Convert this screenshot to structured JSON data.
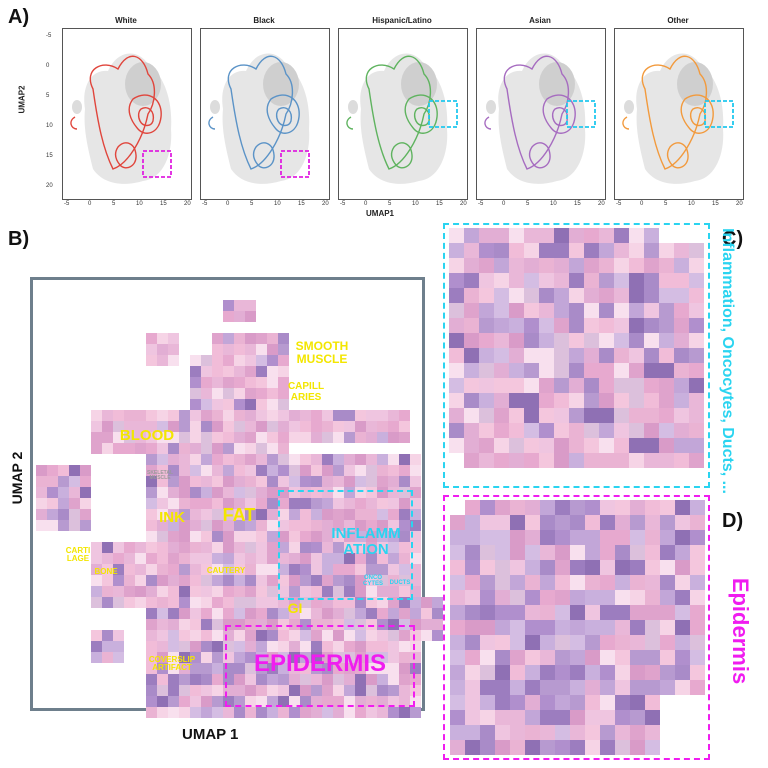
{
  "panels": {
    "a": "A)",
    "b": "B)",
    "c": "C)",
    "d": "D)"
  },
  "panel_a": {
    "subplots": [
      {
        "title": "White",
        "color": "#e0453c",
        "box_color": "#e020e0"
      },
      {
        "title": "Black",
        "color": "#5b93c7",
        "box_color": "#e020e0"
      },
      {
        "title": "Hispanic/Latino",
        "color": "#5fb35f",
        "box_color": "#20c8ee"
      },
      {
        "title": "Asian",
        "color": "#a66cc0",
        "box_color": "#20c8ee"
      },
      {
        "title": "Other",
        "color": "#f29a3d",
        "box_color": "#20c8ee"
      }
    ],
    "ylabel": "UMAP2",
    "xlabel": "UMAP1",
    "yticks": [
      "-5",
      "0",
      "5",
      "10",
      "15",
      "20"
    ],
    "xticks": [
      "-5",
      "0",
      "5",
      "10",
      "15",
      "20"
    ]
  },
  "panel_b": {
    "xlabel": "UMAP 1",
    "ylabel": "UMAP 2",
    "labels": {
      "smooth_muscle": "SMOOTH MUSCLE",
      "capillaries": "CAPILL ARIES",
      "blood": "BLOOD",
      "skeletal": "SKELETAL MUSCLE",
      "ink": "INK",
      "fat": "FAT",
      "inflammation": "INFLAMM ATION",
      "cartilage": "CARTI LAGE",
      "bone": "BONE",
      "cautery": "CAUTERY",
      "oncocytes": "ONCO CYTES",
      "ducts": "DUCTS",
      "gi": "GI",
      "coverslip": "COVERSLIP ARTIFACT",
      "epidermis": "EPIDERMIS"
    }
  },
  "panel_c": {
    "caption": "Inflammation, Oncocytes, Ducts, ..."
  },
  "panel_d": {
    "caption": "Epidermis"
  },
  "colors": {
    "yellow": "#f3e600",
    "cyan": "#2ad4f0",
    "magenta": "#f01cf0",
    "frame": "#6e7f8c"
  }
}
